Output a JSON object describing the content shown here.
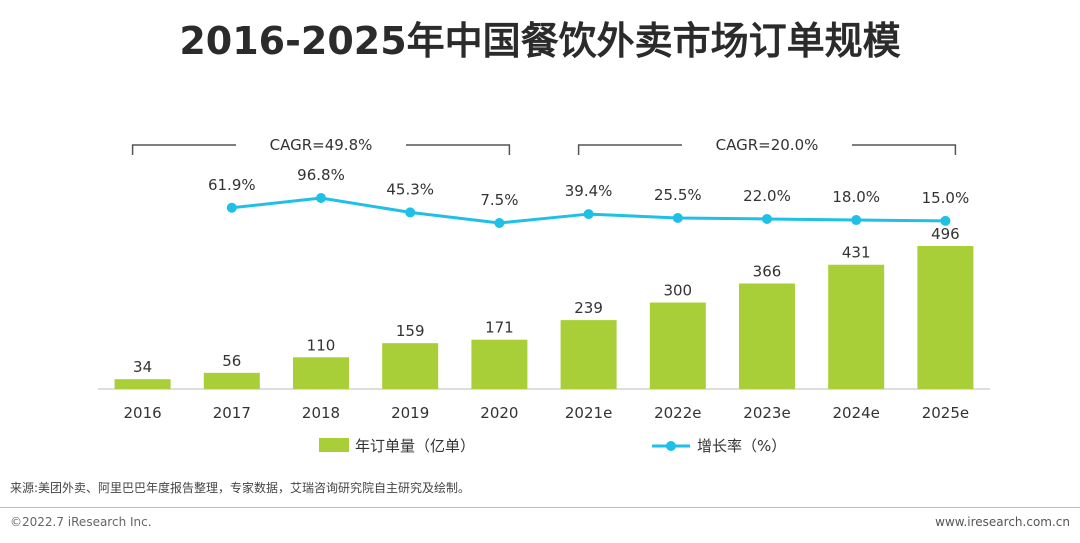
{
  "title": "2016-2025年中国餐饮外卖市场订单规模",
  "chart_data": {
    "type": "bar+line",
    "categories": [
      "2016",
      "2017",
      "2018",
      "2019",
      "2020",
      "2021e",
      "2022e",
      "2023e",
      "2024e",
      "2025e"
    ],
    "series": [
      {
        "name": "年订单量（亿单）",
        "type": "bar",
        "color": "#a9cf38",
        "values": [
          34,
          56,
          110,
          159,
          171,
          239,
          300,
          366,
          431,
          496
        ],
        "labels": [
          "34",
          "56",
          "110",
          "159",
          "171",
          "239",
          "300",
          "366",
          "431",
          "496"
        ]
      },
      {
        "name": "增长率（%）",
        "type": "line",
        "color": "#1fc0e6",
        "values": [
          null,
          61.9,
          96.8,
          45.3,
          7.5,
          39.4,
          25.5,
          22.0,
          18.0,
          15.0
        ],
        "labels": [
          "",
          "61.9%",
          "96.8%",
          "45.3%",
          "7.5%",
          "39.4%",
          "25.5%",
          "22.0%",
          "18.0%",
          "15.0%"
        ]
      }
    ],
    "annotations": [
      {
        "text": "CAGR=49.8%",
        "from": "2016",
        "to": "2020"
      },
      {
        "text": "CAGR=20.0%",
        "from": "2021e",
        "to": "2025e"
      }
    ],
    "ylim": [
      0,
      560
    ],
    "grid": false,
    "legend_position": "bottom"
  },
  "source": "来源:美团外卖、阿里巴巴年度报告整理，专家数据，艾瑞咨询研究院自主研究及绘制。",
  "copyright": "©2022.7 iResearch Inc.",
  "website": "www.iresearch.com.cn"
}
